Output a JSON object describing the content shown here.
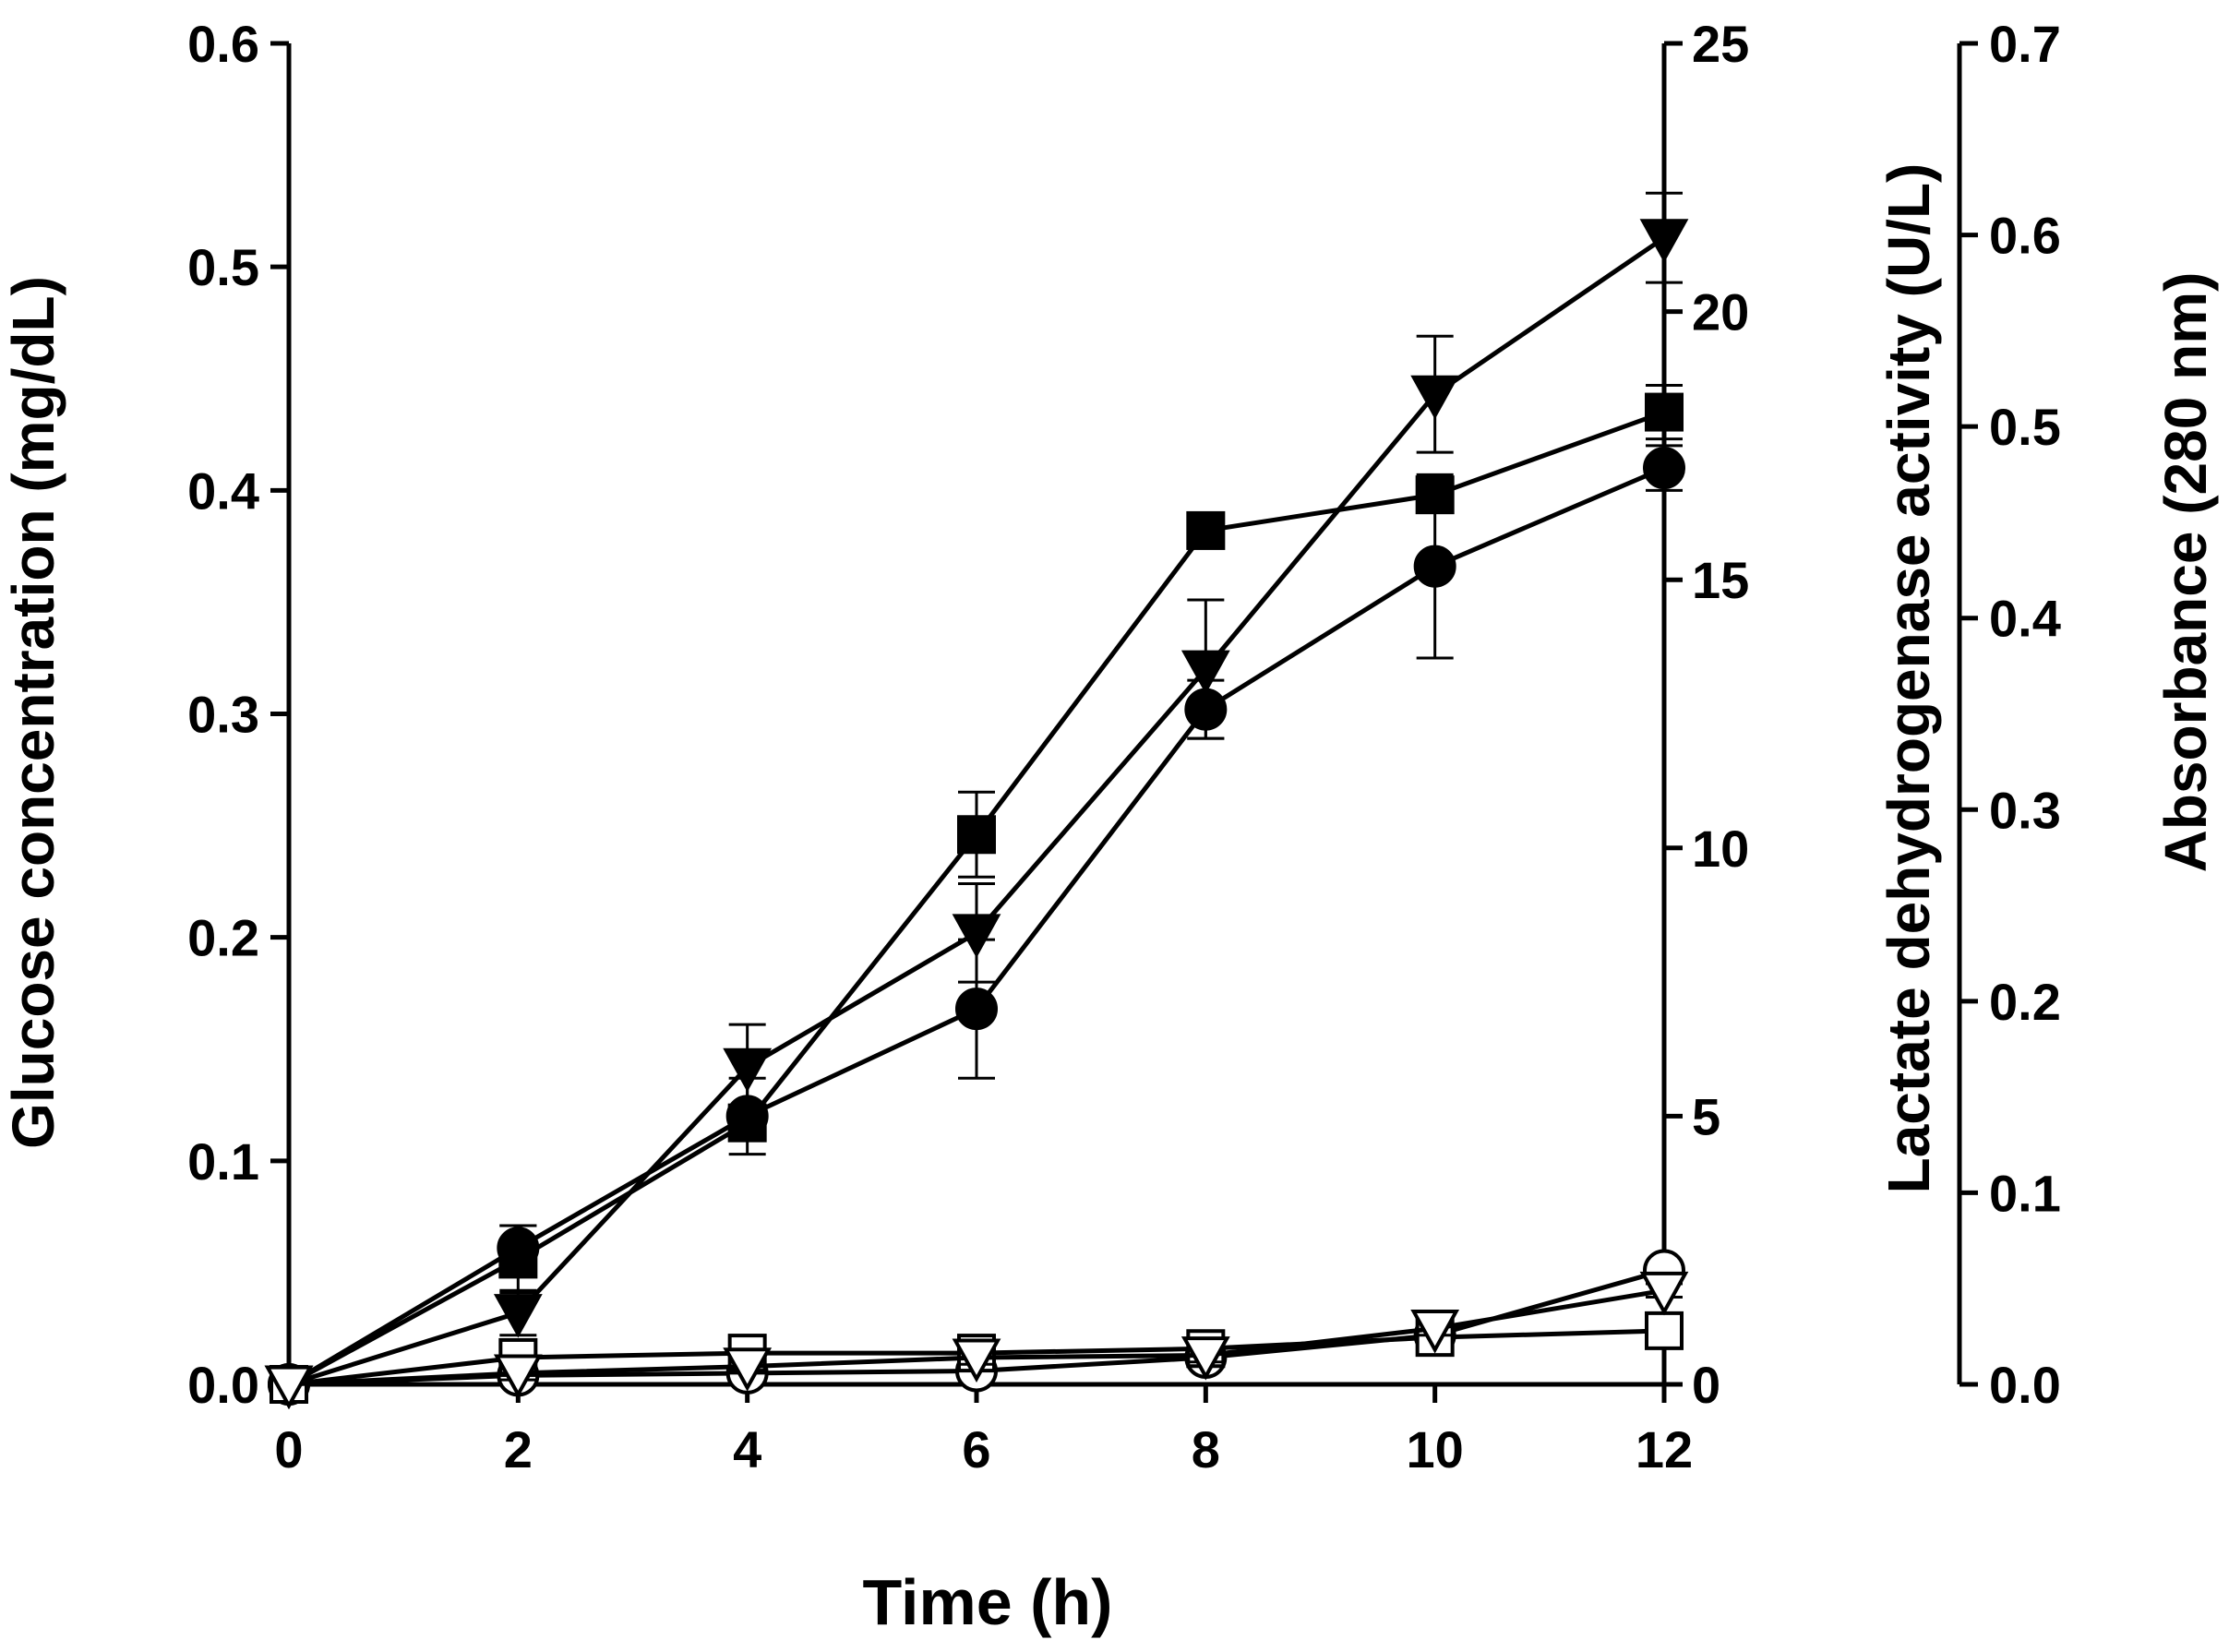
{
  "chart_data": {
    "type": "line",
    "x": [
      0,
      2,
      4,
      6,
      8,
      10,
      12
    ],
    "xlabel": "Time (h)",
    "xlim": [
      0,
      12
    ],
    "x_ticks": [
      0,
      2,
      4,
      6,
      8,
      10,
      12
    ],
    "axes": {
      "left": {
        "label": "Glucose concentration (mg/dL)",
        "range": [
          0,
          0.6
        ],
        "ticks": [
          "0.0",
          "0.1",
          "0.2",
          "0.3",
          "0.4",
          "0.5",
          "0.6"
        ]
      },
      "right1": {
        "label": "Lactate dehydrogenase activity (U/L)",
        "range": [
          0,
          25
        ],
        "ticks": [
          "0",
          "5",
          "10",
          "15",
          "20",
          "25"
        ]
      },
      "right2": {
        "label": "Absorbance (280 nm)",
        "range": [
          0,
          0.7
        ],
        "ticks": [
          "0.0",
          "0.1",
          "0.2",
          "0.3",
          "0.4",
          "0.5",
          "0.6",
          "0.7"
        ]
      }
    },
    "grid": false,
    "legend": "none",
    "series": [
      {
        "name": "filled circle",
        "marker": "circle",
        "filled": true,
        "values": [
          0.0,
          0.061,
          0.12,
          0.168,
          0.302,
          0.366,
          0.41
        ],
        "errors": [
          0,
          0.01,
          0.017,
          0.031,
          0.013,
          0.041,
          0.01
        ]
      },
      {
        "name": "filled square",
        "marker": "square",
        "filled": true,
        "values": [
          0.0,
          0.056,
          0.117,
          0.246,
          0.382,
          0.398,
          0.435
        ],
        "errors": [
          0,
          0.015,
          0.007,
          0.019,
          0.004,
          0.006,
          0.012
        ]
      },
      {
        "name": "filled triangle",
        "marker": "triangle-down",
        "filled": true,
        "values": [
          0.0,
          0.032,
          0.142,
          0.202,
          0.32,
          0.443,
          0.513
        ],
        "errors": [
          0,
          0.01,
          0.019,
          0.022,
          0.031,
          0.026,
          0.02
        ]
      },
      {
        "name": "open circle",
        "marker": "circle",
        "filled": false,
        "values": [
          0.0,
          0.004,
          0.005,
          0.006,
          0.012,
          0.022,
          0.051
        ],
        "errors": [
          0,
          0.002,
          0.002,
          0.002,
          0.002,
          0.003,
          0.003
        ]
      },
      {
        "name": "open square",
        "marker": "square",
        "filled": false,
        "values": [
          0.0,
          0.012,
          0.014,
          0.014,
          0.016,
          0.021,
          0.024
        ],
        "errors": [
          0,
          0.007,
          0.003,
          0.002,
          0.002,
          0.002,
          0.002
        ]
      },
      {
        "name": "open triangle",
        "marker": "triangle-down",
        "filled": false,
        "values": [
          0.0,
          0.005,
          0.008,
          0.012,
          0.013,
          0.025,
          0.042
        ],
        "errors": [
          0,
          0.003,
          0.003,
          0.003,
          0.003,
          0.003,
          0.003
        ]
      }
    ]
  }
}
